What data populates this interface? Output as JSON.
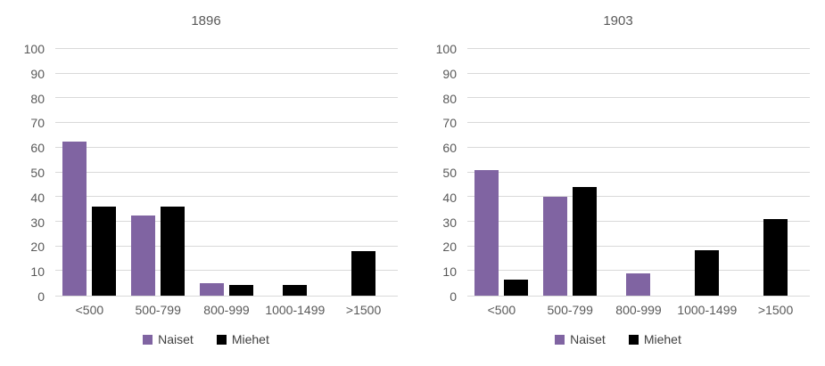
{
  "page": {
    "background": "#ffffff"
  },
  "colors": {
    "naiset": "#8064A2",
    "miehet": "#000000",
    "text": "#595959",
    "gridline": "#D9D9D9"
  },
  "chart_data": [
    {
      "type": "bar",
      "title": "1896",
      "categories": [
        "<500",
        "500-799",
        "800-999",
        "1000-1499",
        ">1500"
      ],
      "series": [
        {
          "name": "Naiset",
          "color": "#8064A2",
          "values": [
            62.5,
            32.5,
            5,
            0,
            0
          ]
        },
        {
          "name": "Miehet",
          "color": "#000000",
          "values": [
            36,
            36,
            4.5,
            4.5,
            18
          ]
        }
      ],
      "xlabel": "",
      "ylabel": "",
      "ylim": [
        0,
        100
      ],
      "ytick_step": 10,
      "grid": true,
      "legend_position": "bottom"
    },
    {
      "type": "bar",
      "title": "1903",
      "categories": [
        "<500",
        "500-799",
        "800-999",
        "1000-1499",
        ">1500"
      ],
      "series": [
        {
          "name": "Naiset",
          "color": "#8064A2",
          "values": [
            51,
            40,
            9,
            0,
            0
          ]
        },
        {
          "name": "Miehet",
          "color": "#000000",
          "values": [
            6.5,
            44,
            0,
            18.5,
            31
          ]
        }
      ],
      "xlabel": "",
      "ylabel": "",
      "ylim": [
        0,
        100
      ],
      "ytick_step": 10,
      "grid": true,
      "legend_position": "bottom"
    }
  ]
}
